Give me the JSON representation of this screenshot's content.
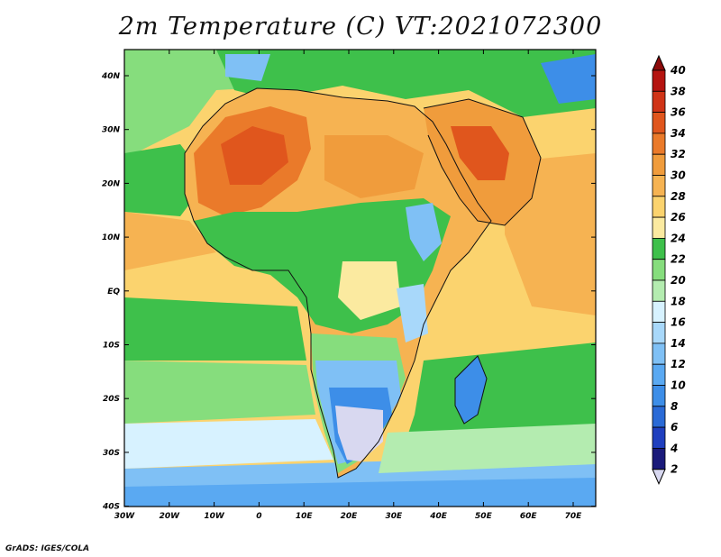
{
  "title": "2m Temperature (C) VT:2021072300",
  "credit": "GrADS: IGES/COLA",
  "map": {
    "lon_ticks": [
      "30W",
      "20W",
      "10W",
      "0",
      "10E",
      "20E",
      "30E",
      "40E",
      "50E",
      "60E",
      "70E"
    ],
    "lat_ticks": [
      "40N",
      "30N",
      "20N",
      "10N",
      "EQ",
      "10S",
      "20S",
      "30S",
      "40S"
    ]
  },
  "colorbar": {
    "labels": [
      "2",
      "4",
      "6",
      "8",
      "10",
      "12",
      "14",
      "16",
      "18",
      "20",
      "22",
      "24",
      "26",
      "28",
      "30",
      "32",
      "34",
      "36",
      "38",
      "40"
    ],
    "colors": [
      "#1a1a7a",
      "#1f3fbf",
      "#2a6ad6",
      "#3d8ee8",
      "#5aa9f2",
      "#7fc0f5",
      "#a8d8fa",
      "#d7f2ff",
      "#b4ecb0",
      "#86dd7d",
      "#3ec04b",
      "#fbeaa0",
      "#fbd36e",
      "#f6b352",
      "#f09c3c",
      "#ea7a2a",
      "#e0561d",
      "#d03417",
      "#b51410",
      "#8c0a0a"
    ],
    "below_color": "#d8d8f0"
  }
}
